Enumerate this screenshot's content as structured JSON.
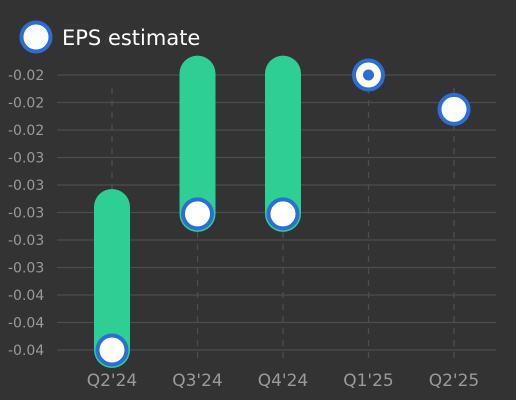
{
  "chart_data": {
    "type": "scatter",
    "legend": {
      "label": "EPS estimate",
      "position": "top-left",
      "marker_fill": "#ffffff",
      "marker_stroke": "#2b6fd6"
    },
    "categories": [
      "Q2'24",
      "Q3'24",
      "Q4'24",
      "Q1'25",
      "Q2'25"
    ],
    "y_tick_labels": [
      "-0.02",
      "-0.02",
      "-0.02",
      "-0.03",
      "-0.03",
      "-0.03",
      "-0.03",
      "-0.03",
      "-0.04",
      "-0.04",
      "-0.04"
    ],
    "ylim": [
      -0.04,
      -0.02
    ],
    "grid": true,
    "series": [
      {
        "name": "EPS estimate",
        "values": [
          -0.04,
          -0.0301,
          -0.0301,
          -0.02,
          -0.0225
        ]
      },
      {
        "values": [
          -0.0296,
          -0.0199,
          -0.0199,
          -0.02,
          null
        ]
      }
    ],
    "colors": {
      "background": "#333333",
      "actual_bar": "#2ecf95",
      "estimate_marker_fill": "#ffffff",
      "estimate_marker_stroke": "#2b6fd6",
      "actual_dot": "#2b6fd6",
      "grid": "#4d4d4d",
      "tick_text": "#9a9a9a"
    }
  }
}
